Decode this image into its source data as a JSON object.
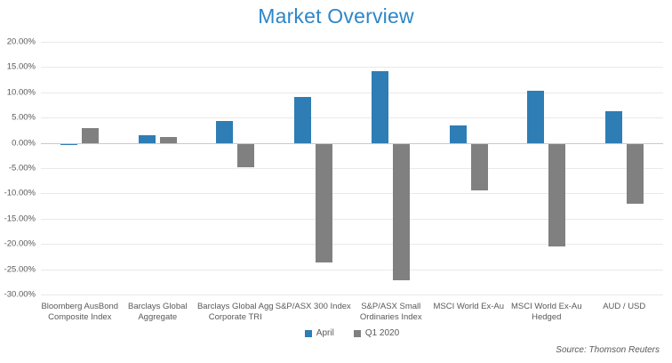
{
  "title": "Market Overview",
  "source_note": "Source: Thomson Reuters",
  "colors": {
    "title_blue": "#2e86c8",
    "series_april_blue": "#2e7db5",
    "series_q1_gray": "#808080",
    "axis_text": "#595959",
    "gridline": "#e9e9e9",
    "zero_line": "#c9c9c9"
  },
  "legend": {
    "position": "bottom",
    "items": [
      {
        "label": "April",
        "color": "#2e7db5"
      },
      {
        "label": "Q1 2020",
        "color": "#808080"
      }
    ]
  },
  "chart_data": {
    "type": "bar",
    "title": "Market Overview",
    "categories": [
      "Bloomberg AusBond Composite Index",
      "Barclays Global Aggregate",
      "Barclays Global Agg Corporate TRI",
      "S&P/ASX 300 Index",
      "S&P/ASX Small Ordinaries Index",
      "MSCI World Ex-Au",
      "MSCI World Ex-Au Hedged",
      "AUD / USD"
    ],
    "series": [
      {
        "name": "April",
        "color": "#2e7db5",
        "values": [
          -0.1,
          1.5,
          4.4,
          9.0,
          14.2,
          3.4,
          10.4,
          6.2
        ]
      },
      {
        "name": "Q1 2020",
        "color": "#808080",
        "values": [
          3.0,
          1.2,
          -4.6,
          -23.4,
          -27.0,
          -9.2,
          -20.3,
          -11.9
        ]
      }
    ],
    "xlabel": "",
    "ylabel": "",
    "ylim": [
      -30,
      20
    ],
    "ytick_step": 5,
    "ytick_format": "0.00%",
    "grid": true,
    "legend_position": "bottom"
  }
}
